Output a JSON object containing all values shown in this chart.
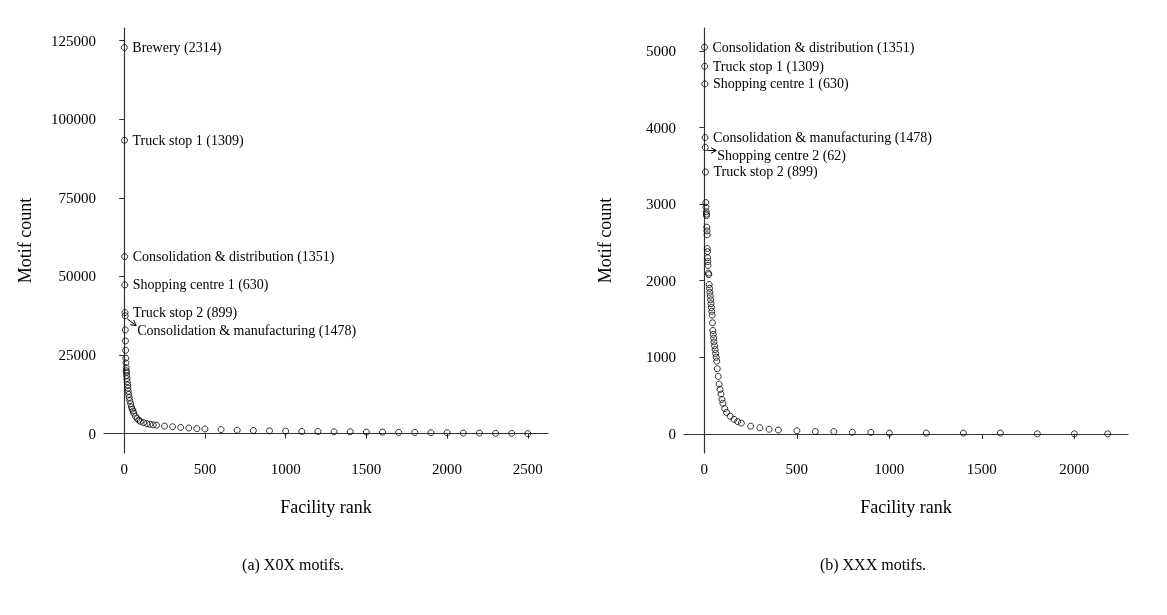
{
  "chart_data": [
    {
      "type": "scatter",
      "xlabel": "Facility rank",
      "ylabel": "Motif count",
      "marker": "circle",
      "grid": false,
      "xlim": [
        -125,
        2625
      ],
      "ylim": [
        -6150,
        129000
      ],
      "xticks": [
        0,
        500,
        1000,
        1500,
        2000,
        2500
      ],
      "yticks": [
        0,
        25000,
        50000,
        75000,
        100000,
        125000
      ],
      "series": [
        {
          "color": "#000000",
          "x": [
            1,
            2,
            3,
            4,
            5,
            6,
            7,
            8,
            9,
            10,
            11,
            12,
            13,
            14,
            15,
            17,
            19,
            21,
            23,
            25,
            28,
            31,
            35,
            40,
            45,
            50,
            55,
            60,
            70,
            80,
            90,
            100,
            120,
            140,
            160,
            180,
            200,
            250,
            300,
            350,
            400,
            450,
            500,
            600,
            700,
            800,
            900,
            1000,
            1100,
            1200,
            1300,
            1400,
            1500,
            1600,
            1700,
            1800,
            1900,
            2000,
            2100,
            2200,
            2300,
            2400,
            2500
          ],
          "values": [
            122800,
            93300,
            56300,
            47300,
            38500,
            37500,
            33000,
            29500,
            26500,
            24000,
            22500,
            21000,
            20000,
            19500,
            18500,
            17500,
            16500,
            15500,
            14500,
            13500,
            12500,
            11500,
            10500,
            9500,
            8500,
            7800,
            7200,
            6500,
            5500,
            4800,
            4300,
            3900,
            3500,
            3200,
            3000,
            2800,
            2700,
            2400,
            2200,
            2000,
            1800,
            1600,
            1500,
            1300,
            1100,
            1000,
            900,
            800,
            700,
            700,
            600,
            600,
            500,
            500,
            400,
            400,
            300,
            300,
            200,
            200,
            100,
            100,
            0
          ]
        }
      ],
      "annotations": [
        {
          "text": "Brewery (2314)",
          "x": 1,
          "y": 122800
        },
        {
          "text": "Truck stop 1 (1309)",
          "x": 2,
          "y": 93300
        },
        {
          "text": "Consolidation & distribution (1351)",
          "x": 3,
          "y": 56300
        },
        {
          "text": "Shopping centre 1 (630)",
          "x": 4,
          "y": 47300
        },
        {
          "text": "Truck stop 2 (899)",
          "x": 5,
          "y": 38500
        },
        {
          "text": "Consolidation & manufacturing (1478)",
          "x": 6,
          "y": 37500
        },
        "(a) X0X motifs."
      ]
    },
    {
      "type": "scatter",
      "xlabel": "Facility rank",
      "ylabel": "Motif count",
      "marker": "circle",
      "grid": false,
      "xlim": [
        -110,
        2290
      ],
      "ylim": [
        -250,
        5300
      ],
      "xticks": [
        0,
        500,
        1000,
        1500,
        2000
      ],
      "yticks": [
        0,
        1000,
        2000,
        3000,
        4000,
        5000
      ],
      "series": [
        {
          "color": "#000000",
          "x": [
            1,
            2,
            3,
            4,
            5,
            6,
            8,
            9,
            10,
            11,
            12,
            13,
            14,
            15,
            16,
            17,
            18,
            19,
            20,
            22,
            24,
            26,
            28,
            30,
            32,
            34,
            36,
            38,
            40,
            42,
            44,
            46,
            48,
            50,
            52,
            55,
            58,
            61,
            64,
            67,
            70,
            75,
            80,
            85,
            90,
            95,
            100,
            110,
            120,
            140,
            160,
            180,
            200,
            250,
            300,
            350,
            400,
            500,
            600,
            700,
            800,
            900,
            1000,
            1200,
            1400,
            1600,
            1800,
            2000,
            2180
          ],
          "values": [
            5050,
            4800,
            4570,
            3870,
            3740,
            3420,
            3020,
            2960,
            2900,
            2870,
            2850,
            2700,
            2650,
            2600,
            2420,
            2380,
            2300,
            2250,
            2200,
            2100,
            2080,
            1950,
            1900,
            1850,
            1800,
            1750,
            1700,
            1650,
            1600,
            1550,
            1450,
            1350,
            1300,
            1250,
            1200,
            1150,
            1100,
            1050,
            1000,
            950,
            850,
            750,
            650,
            580,
            520,
            450,
            400,
            330,
            280,
            230,
            190,
            160,
            140,
            100,
            80,
            60,
            50,
            40,
            30,
            30,
            20,
            20,
            10,
            10,
            10,
            10,
            0,
            0,
            0
          ]
        }
      ],
      "annotations": [
        {
          "text": "Consolidation & distribution (1351)",
          "x": 1,
          "y": 5050
        },
        {
          "text": "Truck stop 1 (1309)",
          "x": 2,
          "y": 4800
        },
        {
          "text": "Shopping centre 1 (630)",
          "x": 3,
          "y": 4570
        },
        {
          "text": "Consolidation & manufacturing (1478)",
          "x": 4,
          "y": 3870
        },
        {
          "text": "Shopping centre 2 (62)",
          "x": 5,
          "y": 3740
        },
        {
          "text": "Truck stop 2 (899)",
          "x": 6,
          "y": 3420
        },
        "(b) XXX motifs."
      ]
    }
  ]
}
